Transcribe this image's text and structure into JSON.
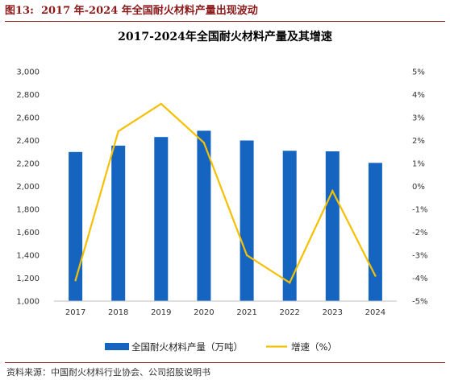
{
  "figure": {
    "label": "图13:",
    "title": "2017 年-2024 年全国耐火材料产量出现波动"
  },
  "source": "资料来源：中国耐火材料行业协会、公司招股说明书",
  "colors": {
    "bar": "#1565c0",
    "line": "#f5c000",
    "accent": "#8b1a1a"
  },
  "chart_data": {
    "type": "bar",
    "title": "2017-2024年全国耐火材料产量及其增速",
    "categories": [
      "2017",
      "2018",
      "2019",
      "2020",
      "2021",
      "2022",
      "2023",
      "2024"
    ],
    "series": [
      {
        "name": "全国耐火材料产量（万吨）",
        "type": "bar",
        "axis": "left",
        "values": [
          2300,
          2355,
          2430,
          2485,
          2400,
          2310,
          2305,
          2205
        ]
      },
      {
        "name": "增速（%）",
        "type": "line",
        "axis": "right",
        "values": [
          -4.1,
          2.4,
          3.6,
          1.9,
          -3.0,
          -4.2,
          -0.2,
          -3.9
        ]
      }
    ],
    "ylim_left": [
      1000,
      3000
    ],
    "yticks_left": [
      "1,000",
      "1,200",
      "1,400",
      "1,600",
      "1,800",
      "2,000",
      "2,200",
      "2,400",
      "2,600",
      "2,800",
      "3,000"
    ],
    "ylim_right": [
      -5,
      5
    ],
    "yticks_right": [
      "-5%",
      "-4%",
      "-3%",
      "-2%",
      "-1%",
      "0%",
      "1%",
      "2%",
      "3%",
      "4%",
      "5%"
    ],
    "grid": false,
    "legend_position": "bottom"
  }
}
